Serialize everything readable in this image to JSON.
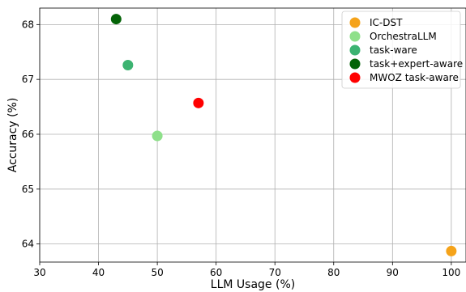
{
  "chart_data": {
    "type": "scatter",
    "title": "",
    "xlabel": "LLM Usage (%)",
    "ylabel": "Accuracy (%)",
    "xlim": [
      30,
      102.5
    ],
    "ylim": [
      63.67,
      68.3
    ],
    "xticks": [
      30,
      40,
      50,
      60,
      70,
      80,
      90,
      100
    ],
    "yticks": [
      64,
      65,
      66,
      67,
      68
    ],
    "grid": true,
    "legend_position": "top-right",
    "series": [
      {
        "name": "IC-DST",
        "color": "#f5a31a",
        "points": [
          {
            "x": 100.0,
            "y": 63.87
          }
        ]
      },
      {
        "name": "OrchestraLLM",
        "color": "#8ee08a",
        "points": [
          {
            "x": 50.0,
            "y": 65.97
          }
        ]
      },
      {
        "name": "task-ware",
        "color": "#3cb371",
        "points": [
          {
            "x": 45.0,
            "y": 67.26
          }
        ]
      },
      {
        "name": "task+expert-aware",
        "color": "#046307",
        "points": [
          {
            "x": 43.0,
            "y": 68.1
          }
        ]
      },
      {
        "name": "MWOZ task-aware",
        "color": "#ff0000",
        "points": [
          {
            "x": 57.0,
            "y": 66.57
          }
        ]
      }
    ]
  }
}
